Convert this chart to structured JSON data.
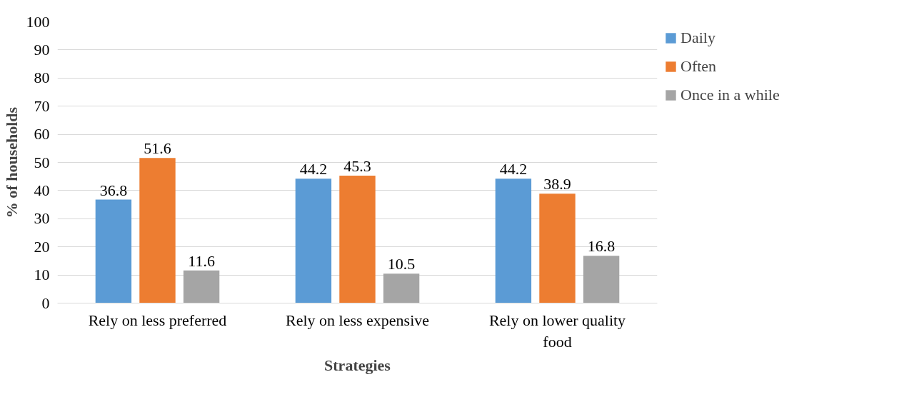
{
  "chart_data": {
    "type": "bar",
    "categories": [
      "Rely on less preferred",
      "Rely on less expensive",
      "Rely on lower quality food"
    ],
    "series": [
      {
        "name": "Daily",
        "color": "#5b9bd5",
        "values": [
          36.8,
          44.2,
          44.2
        ]
      },
      {
        "name": "Often",
        "color": "#ed7d31",
        "values": [
          51.6,
          45.3,
          38.9
        ]
      },
      {
        "name": "Once in a while",
        "color": "#a5a5a5",
        "values": [
          11.6,
          10.5,
          16.8
        ]
      }
    ],
    "xlabel": "Strategies",
    "ylabel": "% of households",
    "ylim": [
      0,
      100
    ],
    "yticks": [
      0,
      10,
      20,
      30,
      40,
      50,
      60,
      70,
      80,
      90,
      100
    ],
    "grid": "y",
    "legend": "top right",
    "data_labels": true
  }
}
